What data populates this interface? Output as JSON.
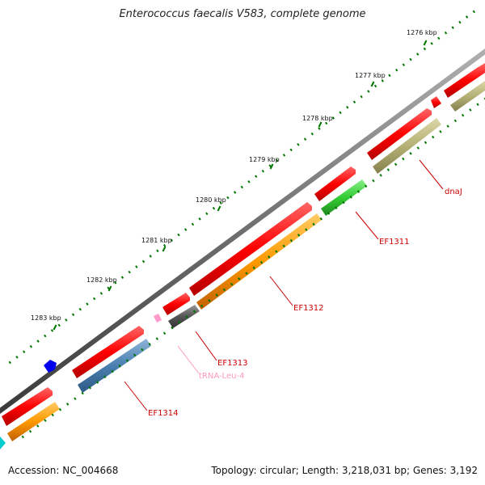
{
  "title": "Enterococcus faecalis V583, complete genome",
  "footer": {
    "accession": "Accession: NC_004668",
    "summary": "Topology: circular; Length: 3,218,031 bp; Genes: 3,192"
  },
  "colors": {
    "backbone": "#6e6e6e",
    "cds": "#ff0000",
    "tick": "#007700",
    "gene_label": "#cc0000",
    "trna_label": "#ff99bb",
    "dnaJ": "#b5b074",
    "EF1311": "#33cc33",
    "EF1312": "#ff9900",
    "EF1313": "#555555",
    "tRNA": "#ff99cc",
    "EF1314": "#4a7fb0",
    "orange_lower": "#ff9900",
    "cyan_fragment": "#00cccc",
    "blue_marker": "#0000ee"
  },
  "ticks": [
    "1276 kbp",
    "1277 kbp",
    "1278 kbp",
    "1279 kbp",
    "1280 kbp",
    "1281 kbp",
    "1282 kbp",
    "1283 kbp"
  ],
  "gene_labels": {
    "dnaJ": "dnaJ",
    "EF1311": "EF1311",
    "EF1312": "EF1312",
    "EF1313": "EF1313",
    "tRNA": "tRNA-Leu-4",
    "EF1314": "EF1314"
  }
}
